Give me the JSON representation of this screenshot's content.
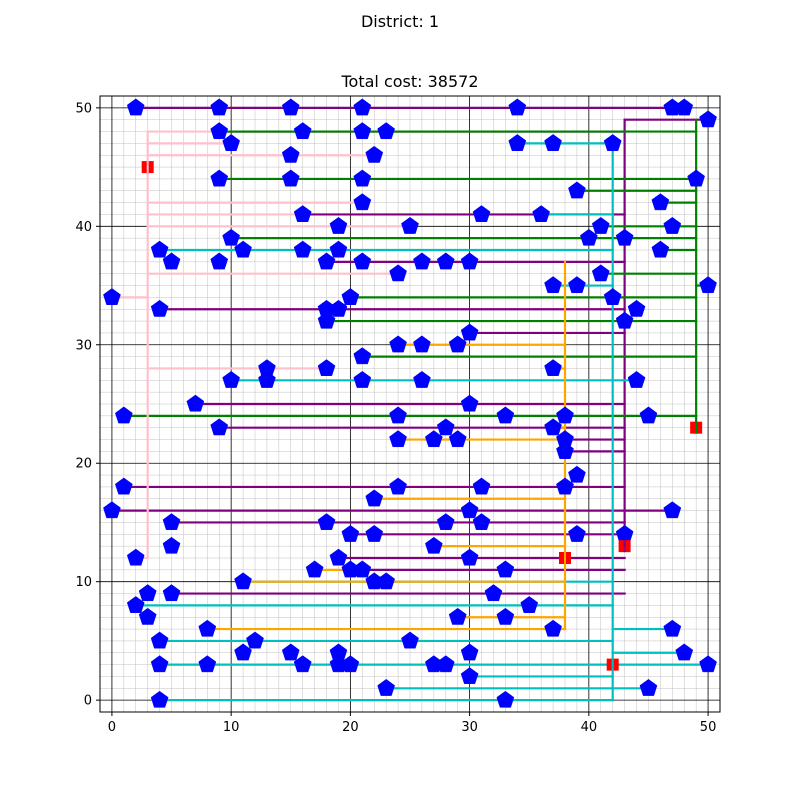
{
  "figure": {
    "suptitle": "District: 1",
    "title": "Total cost: 38572"
  },
  "chart_data": {
    "type": "scatter",
    "title": "Total cost: 38572",
    "suptitle": "District: 1",
    "xlim": [
      -1,
      51
    ],
    "ylim": [
      -1,
      51
    ],
    "major_ticks": [
      0,
      10,
      20,
      30,
      40,
      50
    ],
    "grid": {
      "major": true,
      "minor": true
    },
    "colors": {
      "house_marker": "#0000ff",
      "hub_marker": "#ff0000",
      "purple": "#800080",
      "green": "#008000",
      "cyan": "#00bfbf",
      "orange": "#ffa500",
      "pink": "#ffc0cb"
    },
    "houses": [
      [
        2,
        50
      ],
      [
        9,
        50
      ],
      [
        15,
        50
      ],
      [
        21,
        50
      ],
      [
        34,
        50
      ],
      [
        47,
        50
      ],
      [
        48,
        50
      ],
      [
        50,
        49
      ],
      [
        9,
        48
      ],
      [
        16,
        48
      ],
      [
        21,
        48
      ],
      [
        23,
        48
      ],
      [
        34,
        47
      ],
      [
        37,
        47
      ],
      [
        42,
        47
      ],
      [
        10,
        47
      ],
      [
        15,
        46
      ],
      [
        22,
        46
      ],
      [
        9,
        44
      ],
      [
        15,
        44
      ],
      [
        21,
        44
      ],
      [
        49,
        44
      ],
      [
        39,
        43
      ],
      [
        21,
        42
      ],
      [
        46,
        42
      ],
      [
        16,
        41
      ],
      [
        31,
        41
      ],
      [
        36,
        41
      ],
      [
        19,
        40
      ],
      [
        25,
        40
      ],
      [
        41,
        40
      ],
      [
        47,
        40
      ],
      [
        10,
        39
      ],
      [
        40,
        39
      ],
      [
        43,
        39
      ],
      [
        4,
        38
      ],
      [
        11,
        38
      ],
      [
        16,
        38
      ],
      [
        19,
        38
      ],
      [
        46,
        38
      ],
      [
        5,
        37
      ],
      [
        9,
        37
      ],
      [
        18,
        37
      ],
      [
        21,
        37
      ],
      [
        26,
        37
      ],
      [
        28,
        37
      ],
      [
        30,
        37
      ],
      [
        24,
        36
      ],
      [
        41,
        36
      ],
      [
        37,
        35
      ],
      [
        39,
        35
      ],
      [
        50,
        35
      ],
      [
        0,
        34
      ],
      [
        20,
        34
      ],
      [
        42,
        34
      ],
      [
        4,
        33
      ],
      [
        18,
        33
      ],
      [
        19,
        33
      ],
      [
        44,
        33
      ],
      [
        18,
        32
      ],
      [
        43,
        32
      ],
      [
        30,
        31
      ],
      [
        24,
        30
      ],
      [
        26,
        30
      ],
      [
        29,
        30
      ],
      [
        21,
        29
      ],
      [
        37,
        28
      ],
      [
        13,
        28
      ],
      [
        18,
        28
      ],
      [
        10,
        27
      ],
      [
        13,
        27
      ],
      [
        21,
        27
      ],
      [
        26,
        27
      ],
      [
        44,
        27
      ],
      [
        7,
        25
      ],
      [
        30,
        25
      ],
      [
        1,
        24
      ],
      [
        24,
        24
      ],
      [
        33,
        24
      ],
      [
        38,
        24
      ],
      [
        45,
        24
      ],
      [
        9,
        23
      ],
      [
        28,
        23
      ],
      [
        37,
        23
      ],
      [
        24,
        22
      ],
      [
        27,
        22
      ],
      [
        29,
        22
      ],
      [
        38,
        22
      ],
      [
        38,
        21
      ],
      [
        39,
        19
      ],
      [
        1,
        18
      ],
      [
        24,
        18
      ],
      [
        31,
        18
      ],
      [
        38,
        18
      ],
      [
        22,
        17
      ],
      [
        0,
        16
      ],
      [
        30,
        16
      ],
      [
        47,
        16
      ],
      [
        5,
        15
      ],
      [
        18,
        15
      ],
      [
        28,
        15
      ],
      [
        31,
        15
      ],
      [
        20,
        14
      ],
      [
        22,
        14
      ],
      [
        39,
        14
      ],
      [
        43,
        14
      ],
      [
        5,
        13
      ],
      [
        27,
        13
      ],
      [
        2,
        12
      ],
      [
        19,
        12
      ],
      [
        30,
        12
      ],
      [
        20,
        11
      ],
      [
        21,
        11
      ],
      [
        17,
        11
      ],
      [
        33,
        11
      ],
      [
        11,
        10
      ],
      [
        22,
        10
      ],
      [
        23,
        10
      ],
      [
        32,
        9
      ],
      [
        3,
        9
      ],
      [
        5,
        9
      ],
      [
        2,
        8
      ],
      [
        35,
        8
      ],
      [
        3,
        7
      ],
      [
        29,
        7
      ],
      [
        33,
        7
      ],
      [
        8,
        6
      ],
      [
        37,
        6
      ],
      [
        47,
        6
      ],
      [
        4,
        5
      ],
      [
        12,
        5
      ],
      [
        25,
        5
      ],
      [
        11,
        4
      ],
      [
        15,
        4
      ],
      [
        19,
        4
      ],
      [
        30,
        4
      ],
      [
        48,
        4
      ],
      [
        4,
        3
      ],
      [
        8,
        3
      ],
      [
        16,
        3
      ],
      [
        19,
        3
      ],
      [
        20,
        3
      ],
      [
        27,
        3
      ],
      [
        28,
        3
      ],
      [
        50,
        3
      ],
      [
        30,
        2
      ],
      [
        23,
        1
      ],
      [
        45,
        1
      ],
      [
        4,
        0
      ],
      [
        33,
        0
      ]
    ],
    "hubs": [
      {
        "x": 3,
        "y": 45,
        "color": "pink"
      },
      {
        "x": 49,
        "y": 23,
        "color": "green"
      },
      {
        "x": 43,
        "y": 13,
        "color": "purple"
      },
      {
        "x": 38,
        "y": 12,
        "color": "orange"
      },
      {
        "x": 42,
        "y": 3,
        "color": "cyan"
      }
    ],
    "cables": {
      "purple": [
        [
          [
            2,
            50
          ],
          [
            48,
            50
          ]
        ],
        [
          [
            43,
            49
          ],
          [
            50,
            49
          ]
        ],
        [
          [
            43,
            13
          ],
          [
            43,
            49
          ]
        ],
        [
          [
            9,
            48
          ],
          [
            43,
            48
          ]
        ],
        [
          [
            16,
            41
          ],
          [
            43,
            41
          ]
        ],
        [
          [
            18,
            37
          ],
          [
            43,
            37
          ]
        ],
        [
          [
            4,
            33
          ],
          [
            43,
            33
          ]
        ],
        [
          [
            30,
            31
          ],
          [
            43,
            31
          ]
        ],
        [
          [
            7,
            25
          ],
          [
            43,
            25
          ]
        ],
        [
          [
            9,
            23
          ],
          [
            43,
            23
          ]
        ],
        [
          [
            38,
            22
          ],
          [
            43,
            22
          ]
        ],
        [
          [
            38,
            21
          ],
          [
            43,
            21
          ]
        ],
        [
          [
            1,
            18
          ],
          [
            43,
            18
          ]
        ],
        [
          [
            0,
            16
          ],
          [
            47,
            16
          ]
        ],
        [
          [
            5,
            15
          ],
          [
            43,
            15
          ]
        ],
        [
          [
            20,
            14
          ],
          [
            43,
            14
          ]
        ],
        [
          [
            19,
            12
          ],
          [
            43,
            12
          ]
        ],
        [
          [
            20,
            11
          ],
          [
            43,
            11
          ]
        ],
        [
          [
            5,
            9
          ],
          [
            43,
            9
          ]
        ]
      ],
      "green": [
        [
          [
            49,
            23
          ],
          [
            49,
            49
          ]
        ],
        [
          [
            9,
            48
          ],
          [
            49,
            48
          ]
        ],
        [
          [
            9,
            44
          ],
          [
            49,
            44
          ]
        ],
        [
          [
            39,
            43
          ],
          [
            49,
            43
          ]
        ],
        [
          [
            46,
            42
          ],
          [
            49,
            42
          ]
        ],
        [
          [
            41,
            40
          ],
          [
            49,
            40
          ]
        ],
        [
          [
            10,
            39
          ],
          [
            49,
            39
          ]
        ],
        [
          [
            46,
            38
          ],
          [
            49,
            38
          ]
        ],
        [
          [
            41,
            36
          ],
          [
            49,
            36
          ]
        ],
        [
          [
            49,
            35
          ],
          [
            50,
            35
          ]
        ],
        [
          [
            20,
            34
          ],
          [
            49,
            34
          ]
        ],
        [
          [
            18,
            32
          ],
          [
            49,
            32
          ]
        ],
        [
          [
            21,
            29
          ],
          [
            49,
            29
          ]
        ],
        [
          [
            1,
            24
          ],
          [
            49,
            24
          ]
        ],
        [
          [
            41,
            47
          ],
          [
            42,
            47
          ]
        ]
      ],
      "cyan": [
        [
          [
            42,
            0
          ],
          [
            42,
            47
          ]
        ],
        [
          [
            34,
            47
          ],
          [
            42,
            47
          ]
        ],
        [
          [
            36,
            41
          ],
          [
            42,
            41
          ]
        ],
        [
          [
            4,
            38
          ],
          [
            42,
            38
          ]
        ],
        [
          [
            37,
            35
          ],
          [
            42,
            35
          ]
        ],
        [
          [
            10,
            27
          ],
          [
            44,
            27
          ]
        ],
        [
          [
            11,
            10
          ],
          [
            42,
            10
          ]
        ],
        [
          [
            2,
            8
          ],
          [
            42,
            8
          ]
        ],
        [
          [
            4,
            5
          ],
          [
            42,
            5
          ]
        ],
        [
          [
            42,
            6
          ],
          [
            47,
            6
          ]
        ],
        [
          [
            42,
            4
          ],
          [
            48,
            4
          ]
        ],
        [
          [
            4,
            3
          ],
          [
            50,
            3
          ]
        ],
        [
          [
            30,
            2
          ],
          [
            42,
            2
          ]
        ],
        [
          [
            23,
            1
          ],
          [
            45,
            1
          ]
        ],
        [
          [
            4,
            0
          ],
          [
            42,
            0
          ]
        ]
      ],
      "orange": [
        [
          [
            38,
            6
          ],
          [
            38,
            37
          ]
        ],
        [
          [
            24,
            30
          ],
          [
            38,
            30
          ]
        ],
        [
          [
            37,
            28
          ],
          [
            38,
            28
          ]
        ],
        [
          [
            37,
            23
          ],
          [
            38,
            23
          ]
        ],
        [
          [
            24,
            22
          ],
          [
            38,
            22
          ]
        ],
        [
          [
            22,
            17
          ],
          [
            38,
            17
          ]
        ],
        [
          [
            27,
            13
          ],
          [
            38,
            13
          ]
        ],
        [
          [
            11,
            10
          ],
          [
            38,
            10
          ]
        ],
        [
          [
            17,
            11
          ],
          [
            20,
            11
          ]
        ],
        [
          [
            29,
            7
          ],
          [
            38,
            7
          ]
        ],
        [
          [
            8,
            6
          ],
          [
            38,
            6
          ]
        ]
      ],
      "pink": [
        [
          [
            3,
            12
          ],
          [
            3,
            48
          ]
        ],
        [
          [
            3,
            48
          ],
          [
            9,
            48
          ]
        ],
        [
          [
            3,
            47
          ],
          [
            10,
            47
          ]
        ],
        [
          [
            3,
            46
          ],
          [
            22,
            46
          ]
        ],
        [
          [
            3,
            42
          ],
          [
            21,
            42
          ]
        ],
        [
          [
            3,
            41
          ],
          [
            16,
            41
          ]
        ],
        [
          [
            3,
            40
          ],
          [
            25,
            40
          ]
        ],
        [
          [
            3,
            36
          ],
          [
            24,
            36
          ]
        ],
        [
          [
            0,
            34
          ],
          [
            3,
            34
          ]
        ],
        [
          [
            3,
            28
          ],
          [
            18,
            28
          ]
        ],
        [
          [
            2,
            12
          ],
          [
            3,
            12
          ]
        ]
      ]
    }
  }
}
